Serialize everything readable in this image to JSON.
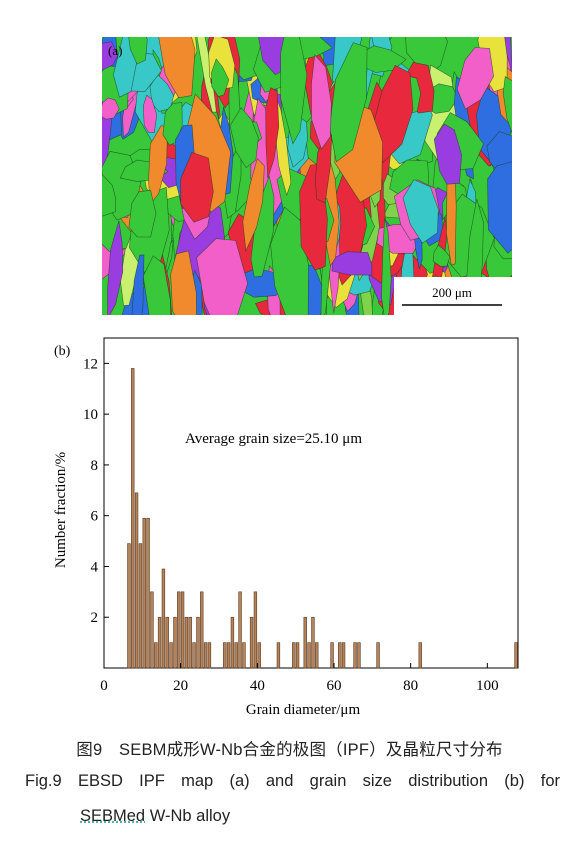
{
  "figure": {
    "panel_a_label": "(a)",
    "panel_b_label": "(b)",
    "scale_bar_label": "200 μm",
    "annotation": "Average grain size=25.10 μm",
    "caption_cn": "图9　SEBM成形W-Nb合金的极图（IPF）及晶粒尺寸分布",
    "caption_en_line1": "Fig.9 EBSD IPF map (a) and grain size distribution (b) for",
    "caption_en_line2_a": "SEBMed",
    "caption_en_line2_b": " W-Nb alloy",
    "ipf_colors": [
      "#39c83a",
      "#e8283c",
      "#2f6ee0",
      "#f25fc9",
      "#38c8c8",
      "#e9e23c",
      "#9a3de0",
      "#f08a2c",
      "#7fd24a",
      "#c9f06e"
    ]
  },
  "chart_data": {
    "type": "bar",
    "xlabel": "Grain diameter/μm",
    "ylabel": "Number fraction/%",
    "xlim": [
      0,
      108
    ],
    "ylim": [
      0,
      13
    ],
    "xticks": [
      0,
      20,
      40,
      60,
      80,
      100
    ],
    "yticks": [
      2,
      4,
      6,
      8,
      10,
      12
    ],
    "bar_color": "#b5835a",
    "bar_edge_color": "#5a3a22",
    "bars": [
      {
        "x": 6.5,
        "y": 4.9
      },
      {
        "x": 7.5,
        "y": 11.8
      },
      {
        "x": 8.5,
        "y": 6.9
      },
      {
        "x": 9.5,
        "y": 4.9
      },
      {
        "x": 10.5,
        "y": 5.9
      },
      {
        "x": 11.5,
        "y": 5.9
      },
      {
        "x": 12.5,
        "y": 3.0
      },
      {
        "x": 13.5,
        "y": 1.0
      },
      {
        "x": 14.5,
        "y": 2.0
      },
      {
        "x": 15.5,
        "y": 3.9
      },
      {
        "x": 16.5,
        "y": 2.0
      },
      {
        "x": 17.5,
        "y": 1.0
      },
      {
        "x": 18.5,
        "y": 2.0
      },
      {
        "x": 19.5,
        "y": 3.0
      },
      {
        "x": 20.5,
        "y": 3.0
      },
      {
        "x": 21.5,
        "y": 2.0
      },
      {
        "x": 22.5,
        "y": 2.0
      },
      {
        "x": 23.5,
        "y": 1.0
      },
      {
        "x": 24.5,
        "y": 2.0
      },
      {
        "x": 25.5,
        "y": 3.0
      },
      {
        "x": 26.5,
        "y": 1.0
      },
      {
        "x": 27.5,
        "y": 1.0
      },
      {
        "x": 31.5,
        "y": 1.0
      },
      {
        "x": 32.5,
        "y": 1.0
      },
      {
        "x": 33.5,
        "y": 2.0
      },
      {
        "x": 34.5,
        "y": 1.0
      },
      {
        "x": 35.5,
        "y": 3.0
      },
      {
        "x": 36.5,
        "y": 1.0
      },
      {
        "x": 38.5,
        "y": 2.0
      },
      {
        "x": 39.5,
        "y": 3.0
      },
      {
        "x": 40.5,
        "y": 1.0
      },
      {
        "x": 45.5,
        "y": 1.0
      },
      {
        "x": 49.5,
        "y": 1.0
      },
      {
        "x": 50.5,
        "y": 1.0
      },
      {
        "x": 52.5,
        "y": 2.0
      },
      {
        "x": 53.5,
        "y": 1.0
      },
      {
        "x": 54.5,
        "y": 2.0
      },
      {
        "x": 55.5,
        "y": 1.0
      },
      {
        "x": 59.5,
        "y": 1.0
      },
      {
        "x": 61.5,
        "y": 1.0
      },
      {
        "x": 62.5,
        "y": 1.0
      },
      {
        "x": 65.5,
        "y": 1.0
      },
      {
        "x": 66.5,
        "y": 1.0
      },
      {
        "x": 71.5,
        "y": 1.0
      },
      {
        "x": 82.5,
        "y": 1.0
      },
      {
        "x": 107.5,
        "y": 1.0
      }
    ]
  }
}
